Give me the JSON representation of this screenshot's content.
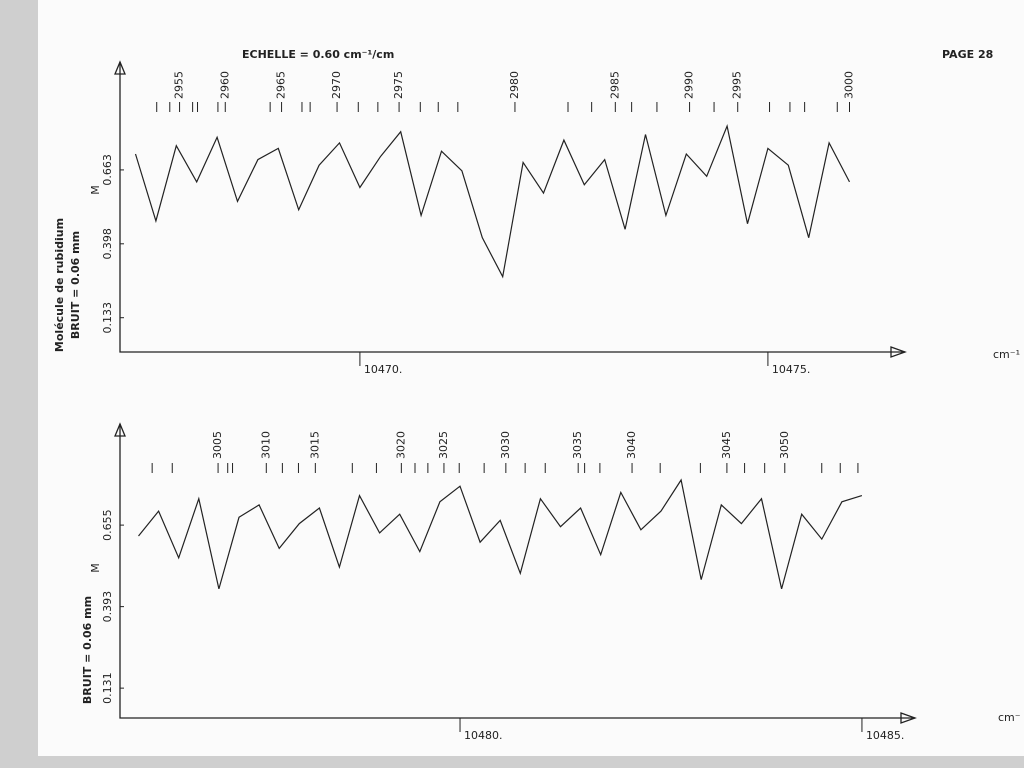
{
  "header": {
    "scale": "ECHELLE = 0.60 cm⁻¹/cm",
    "page": "PAGE 28"
  },
  "chart_data": [
    {
      "type": "line",
      "side_labels": [
        "Molécule de rubidium",
        "BRUIT = 0.06 mm"
      ],
      "marker_label": "M",
      "x_label": "cm⁻¹",
      "xlim": [
        10467.06,
        10476.68
      ],
      "xticks": [
        {
          "value": 10470,
          "label": "10470."
        },
        {
          "value": 10475,
          "label": "10475."
        }
      ],
      "ylim": [
        0.01,
        1.05
      ],
      "yticks": [
        0.663,
        0.398,
        0.133
      ],
      "color": "#222222",
      "x": [
        10467.25,
        10467.5,
        10467.75,
        10468,
        10468.25,
        10468.5,
        10468.75,
        10469,
        10469.25,
        10469.5,
        10469.75,
        10470,
        10470.25,
        10470.5,
        10470.75,
        10471,
        10471.25,
        10471.5,
        10471.75,
        10472,
        10472.25,
        10472.5,
        10472.75,
        10473,
        10473.25,
        10473.5,
        10473.75,
        10474,
        10474.25,
        10474.5,
        10474.75,
        10475,
        10475.25,
        10475.5,
        10475.75,
        10476
      ],
      "values": [
        0.72,
        0.48,
        0.75,
        0.62,
        0.78,
        0.55,
        0.7,
        0.74,
        0.52,
        0.68,
        0.76,
        0.6,
        0.71,
        0.8,
        0.5,
        0.73,
        0.66,
        0.42,
        0.28,
        0.69,
        0.58,
        0.77,
        0.61,
        0.7,
        0.45,
        0.79,
        0.5,
        0.72,
        0.64,
        0.82,
        0.47,
        0.74,
        0.68,
        0.42,
        0.76,
        0.62
      ],
      "line_labels": {
        "x": [
          10467.79,
          10468.35,
          10469.04,
          10469.72,
          10470.48,
          10471.9,
          10473.13,
          10474.04,
          10474.63,
          10476.0
        ],
        "labels": [
          2955,
          2960,
          2965,
          2970,
          2975,
          2980,
          2985,
          2990,
          2995,
          3000
        ]
      },
      "line_marks": [
        10467.51,
        10467.67,
        10467.95,
        10468.01,
        10468.26,
        10468.9,
        10469.29,
        10469.39,
        10469.98,
        10470.22,
        10470.74,
        10470.96,
        10471.2,
        10472.55,
        10472.84,
        10473.33,
        10473.64,
        10474.34,
        10475.02,
        10475.27,
        10475.45,
        10475.85
      ]
    },
    {
      "type": "line",
      "side_labels": [
        "BRUIT = 0.06 mm"
      ],
      "marker_label": "M",
      "x_label": "cm⁻",
      "xlim": [
        10475.77,
        10485.66
      ],
      "xticks": [
        {
          "value": 10480,
          "label": "10480."
        },
        {
          "value": 10485,
          "label": "10485."
        }
      ],
      "ylim": [
        0.035,
        0.98
      ],
      "yticks": [
        0.655,
        0.393,
        0.131
      ],
      "color": "#222222",
      "x": [
        10476,
        10476.25,
        10476.5,
        10476.75,
        10477,
        10477.25,
        10477.5,
        10477.75,
        10478,
        10478.25,
        10478.5,
        10478.75,
        10479,
        10479.25,
        10479.5,
        10479.75,
        10480,
        10480.25,
        10480.5,
        10480.75,
        10481,
        10481.25,
        10481.5,
        10481.75,
        10482,
        10482.25,
        10482.5,
        10482.75,
        10483,
        10483.25,
        10483.5,
        10483.75,
        10484,
        10484.25,
        10484.5,
        10484.75,
        10485
      ],
      "values": [
        0.62,
        0.7,
        0.55,
        0.74,
        0.45,
        0.68,
        0.72,
        0.58,
        0.66,
        0.71,
        0.52,
        0.75,
        0.63,
        0.69,
        0.57,
        0.73,
        0.78,
        0.6,
        0.67,
        0.5,
        0.74,
        0.65,
        0.71,
        0.56,
        0.76,
        0.64,
        0.7,
        0.8,
        0.48,
        0.72,
        0.66,
        0.74,
        0.45,
        0.69,
        0.61,
        0.73,
        0.75
      ],
      "line_labels": {
        "x": [
          10476.99,
          10477.59,
          10478.2,
          10479.27,
          10479.8,
          10480.57,
          10481.47,
          10482.14,
          10483.32,
          10484.04
        ],
        "labels": [
          3005,
          3010,
          3015,
          3020,
          3025,
          3030,
          3035,
          3040,
          3045,
          3050
        ]
      },
      "line_marks": [
        10476.17,
        10476.42,
        10477.11,
        10477.17,
        10477.79,
        10477.99,
        10478.66,
        10478.96,
        10479.44,
        10479.6,
        10479.99,
        10480.3,
        10480.81,
        10481.06,
        10481.55,
        10481.74,
        10482.49,
        10482.99,
        10483.54,
        10483.79,
        10484.5,
        10484.73,
        10484.95
      ]
    }
  ]
}
